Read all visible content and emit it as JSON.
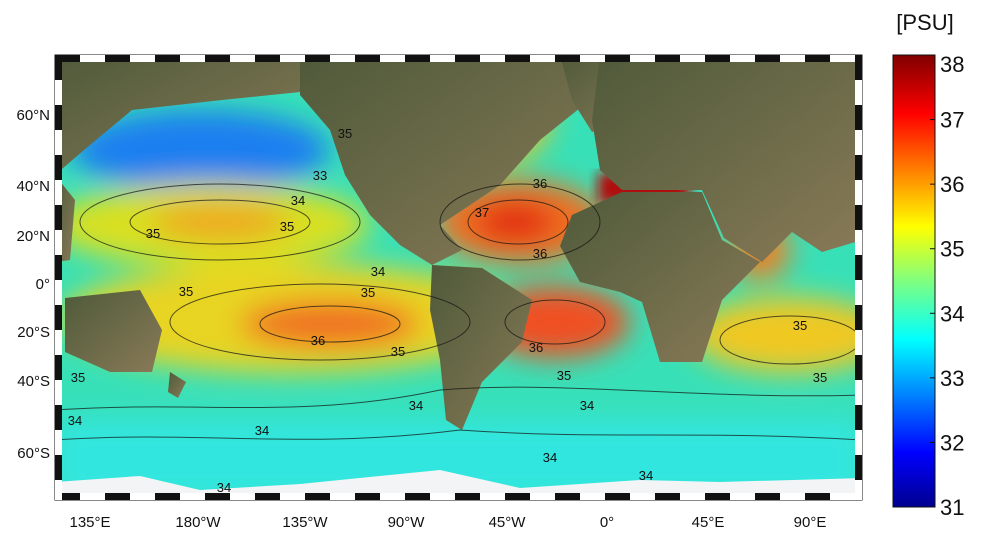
{
  "map": {
    "lat_labels": [
      "60°N",
      "40°N",
      "20°N",
      "0°",
      "20°S",
      "40°S",
      "60°S"
    ],
    "lon_labels": [
      "135°E",
      "180°W",
      "135°W",
      "90°W",
      "45°W",
      "0°",
      "45°E",
      "90°E"
    ],
    "contour_labels": [
      35,
      33,
      34,
      35,
      35,
      34,
      35,
      35,
      36,
      35,
      37,
      36,
      36,
      36,
      35,
      35,
      34,
      35,
      35,
      34,
      34,
      34,
      34,
      34,
      34
    ]
  },
  "colorbar": {
    "label": "[PSU]",
    "lim": [
      31,
      38
    ],
    "ticks": [
      31,
      32,
      33,
      34,
      35,
      36,
      37,
      38
    ]
  }
}
